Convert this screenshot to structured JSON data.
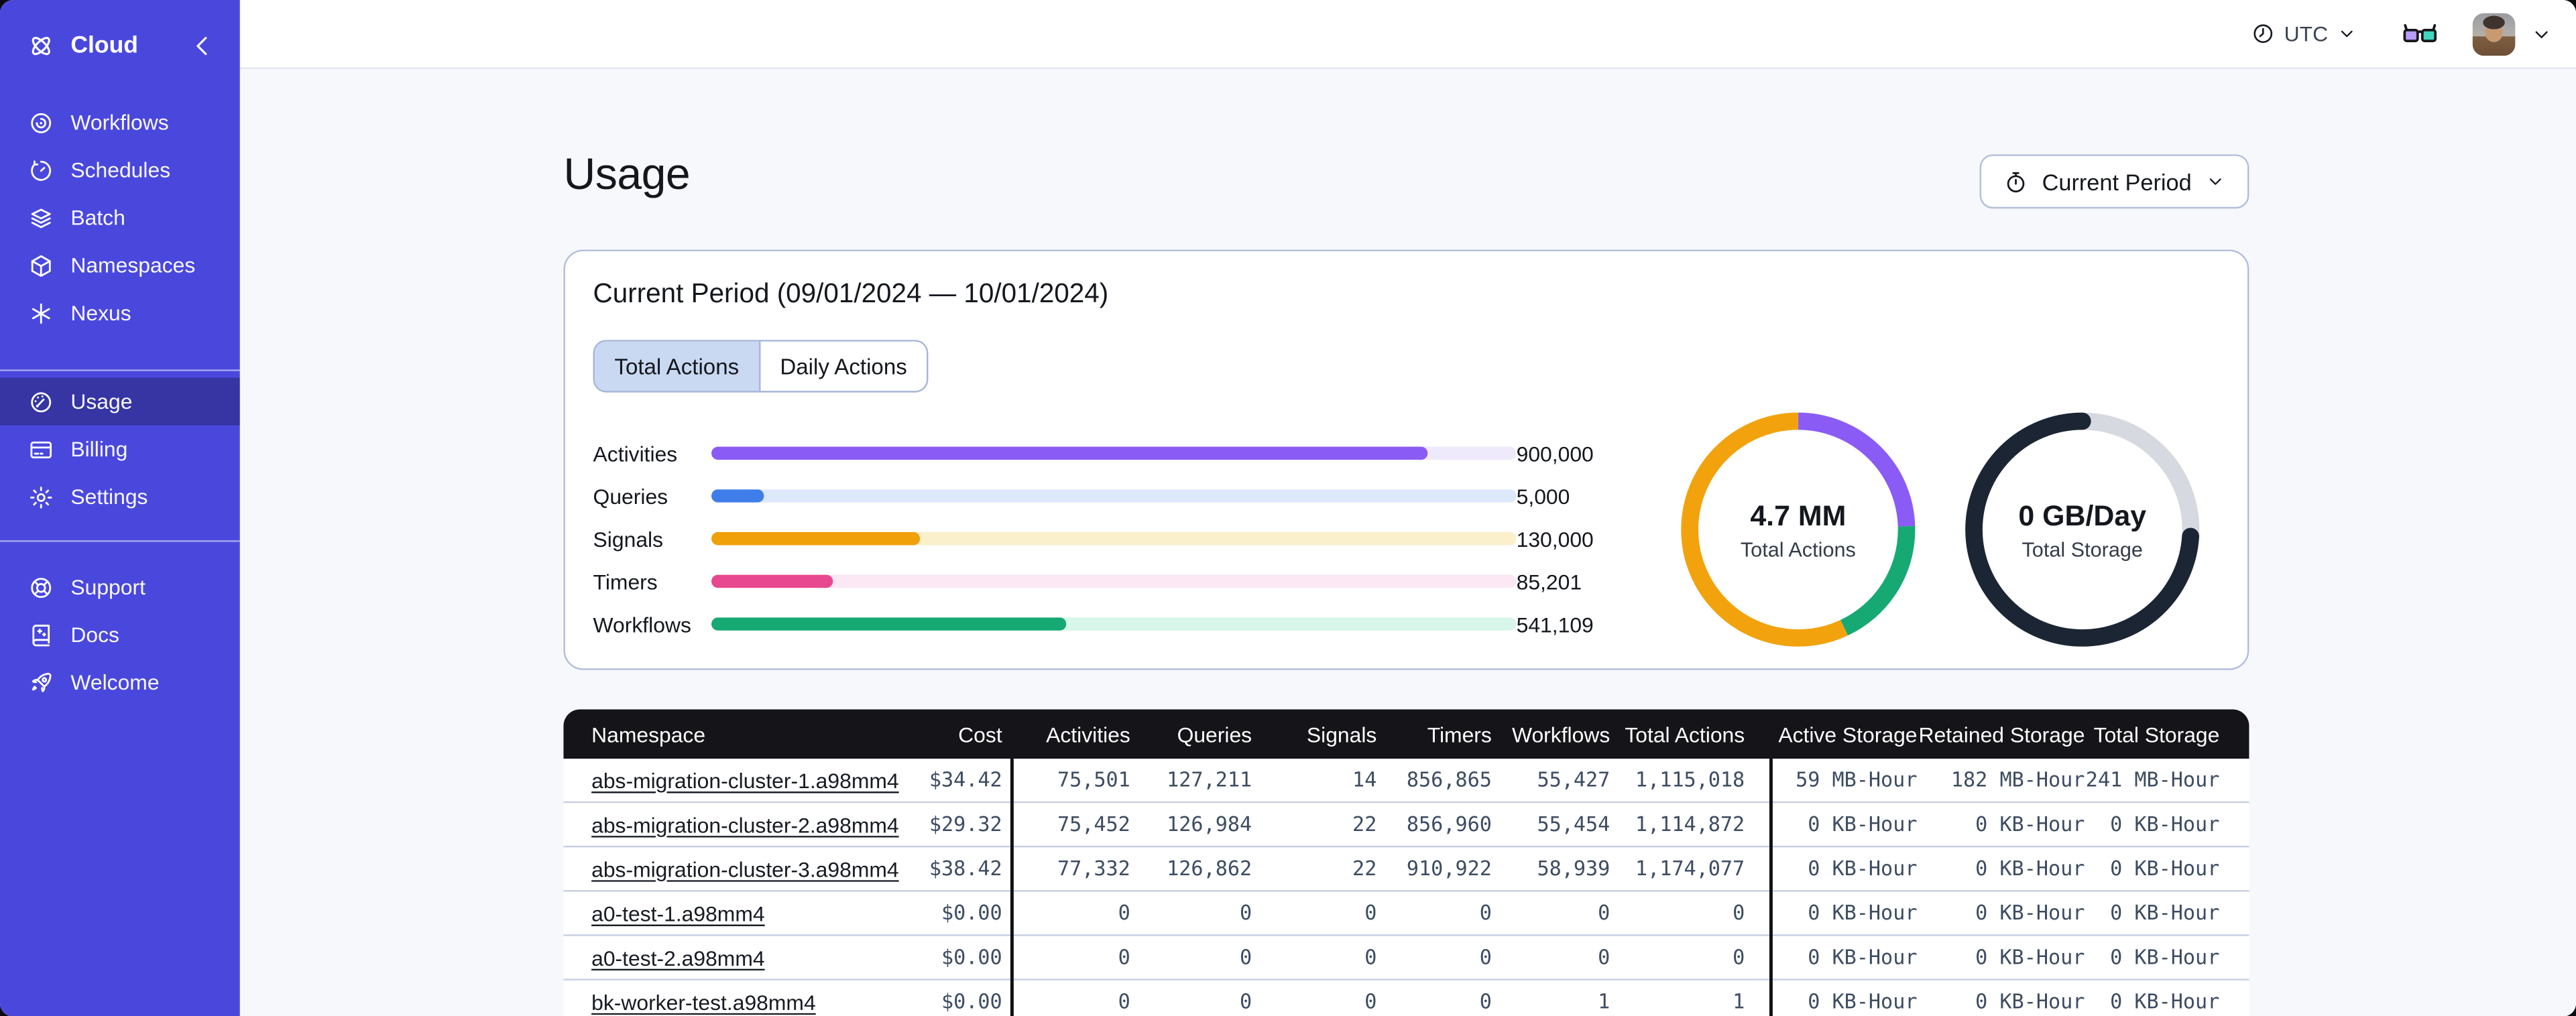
{
  "colors": {
    "sidebar_bg": "#4A48DC",
    "sidebar_selected_overlay": "#3B39B2",
    "accent_border": "#B3BFDC",
    "tab_selected_bg": "#C9D9F2",
    "table_header_bg": "#141419",
    "row_divider": "#C6D0E2",
    "number_text": "#3D4C62"
  },
  "sidebar": {
    "brand_label": "Cloud",
    "nav_primary": [
      {
        "label": "Workflows",
        "icon": "workflows",
        "active": false
      },
      {
        "label": "Schedules",
        "icon": "schedules",
        "active": false
      },
      {
        "label": "Batch",
        "icon": "batch",
        "active": false
      },
      {
        "label": "Namespaces",
        "icon": "namespaces",
        "active": false
      },
      {
        "label": "Nexus",
        "icon": "nexus",
        "active": false
      }
    ],
    "nav_account": [
      {
        "label": "Usage",
        "icon": "usage",
        "active": true
      },
      {
        "label": "Billing",
        "icon": "billing",
        "active": false
      },
      {
        "label": "Settings",
        "icon": "settings",
        "active": false
      }
    ],
    "nav_footer": [
      {
        "label": "Support",
        "icon": "support",
        "active": false
      },
      {
        "label": "Docs",
        "icon": "docs",
        "active": false
      },
      {
        "label": "Welcome",
        "icon": "welcome",
        "active": false
      }
    ]
  },
  "topbar": {
    "timezone": "UTC"
  },
  "page": {
    "title": "Usage",
    "period_button_label": "Current Period"
  },
  "usage_card": {
    "title": "Current Period (09/01/2024 — 10/01/2024)",
    "tabs": [
      {
        "label": "Total Actions",
        "active": true
      },
      {
        "label": "Daily Actions",
        "active": false
      }
    ],
    "chart_data": [
      {
        "type": "bar",
        "orientation": "horizontal",
        "categories": [
          "Activities",
          "Queries",
          "Signals",
          "Timers",
          "Workflows"
        ],
        "values": [
          900000,
          5000,
          130000,
          85201,
          541109
        ],
        "value_labels": [
          "900,000",
          "5,000",
          "130,000",
          "85,201",
          "541,109"
        ],
        "fractions": [
          0.89,
          0.065,
          0.26,
          0.15,
          0.44
        ],
        "colors": [
          "#8A5CF5",
          "#3F7EEA",
          "#F0A009",
          "#E8488F",
          "#16A974"
        ],
        "track_colors": [
          "#EFEAFB",
          "#DDE9FB",
          "#FBF0CC",
          "#FCE8F5",
          "#D8F6E9"
        ]
      },
      {
        "type": "pie",
        "variant": "donut",
        "center_value": "4.7 MM",
        "center_label": "Total Actions",
        "segments": [
          {
            "name": "activities",
            "color": "#8A5CF5",
            "fraction": 0.245
          },
          {
            "name": "workflows",
            "color": "#16A974",
            "fraction": 0.185
          },
          {
            "name": "signals",
            "color": "#F2A20C",
            "fraction": 0.57
          }
        ]
      },
      {
        "type": "pie",
        "variant": "donut",
        "center_value": "0 GB/Day",
        "center_label": "Total Storage",
        "segments": [
          {
            "name": "available",
            "color": "#D6D9DF",
            "fraction": 0.26
          },
          {
            "name": "used",
            "color": "#1C2534",
            "fraction": 0.74,
            "linecap": "round"
          }
        ]
      }
    ]
  },
  "table": {
    "columns": [
      "Namespace",
      "Cost",
      "Activities",
      "Queries",
      "Signals",
      "Timers",
      "Workflows",
      "Total Actions",
      "Active Storage",
      "Retained Storage",
      "Total Storage"
    ],
    "rows": [
      {
        "namespace": "abs-migration-cluster-1.a98mm4",
        "cost": "$34.42",
        "activities": "75,501",
        "queries": "127,211",
        "signals": "14",
        "timers": "856,865",
        "workflows": "55,427",
        "total_actions": "1,115,018",
        "active_storage": "59 MB-Hour",
        "retained_storage": "182 MB-Hour",
        "total_storage": "241 MB-Hour"
      },
      {
        "namespace": "abs-migration-cluster-2.a98mm4",
        "cost": "$29.32",
        "activities": "75,452",
        "queries": "126,984",
        "signals": "22",
        "timers": "856,960",
        "workflows": "55,454",
        "total_actions": "1,114,872",
        "active_storage": "0 KB-Hour",
        "retained_storage": "0 KB-Hour",
        "total_storage": "0 KB-Hour"
      },
      {
        "namespace": "abs-migration-cluster-3.a98mm4",
        "cost": "$38.42",
        "activities": "77,332",
        "queries": "126,862",
        "signals": "22",
        "timers": "910,922",
        "workflows": "58,939",
        "total_actions": "1,174,077",
        "active_storage": "0 KB-Hour",
        "retained_storage": "0 KB-Hour",
        "total_storage": "0 KB-Hour"
      },
      {
        "namespace": "a0-test-1.a98mm4",
        "cost": "$0.00",
        "activities": "0",
        "queries": "0",
        "signals": "0",
        "timers": "0",
        "workflows": "0",
        "total_actions": "0",
        "active_storage": "0 KB-Hour",
        "retained_storage": "0 KB-Hour",
        "total_storage": "0 KB-Hour"
      },
      {
        "namespace": "a0-test-2.a98mm4",
        "cost": "$0.00",
        "activities": "0",
        "queries": "0",
        "signals": "0",
        "timers": "0",
        "workflows": "0",
        "total_actions": "0",
        "active_storage": "0 KB-Hour",
        "retained_storage": "0 KB-Hour",
        "total_storage": "0 KB-Hour"
      },
      {
        "namespace": "bk-worker-test.a98mm4",
        "cost": "$0.00",
        "activities": "0",
        "queries": "0",
        "signals": "0",
        "timers": "0",
        "workflows": "1",
        "total_actions": "1",
        "active_storage": "0 KB-Hour",
        "retained_storage": "0 KB-Hour",
        "total_storage": "0 KB-Hour"
      }
    ]
  }
}
